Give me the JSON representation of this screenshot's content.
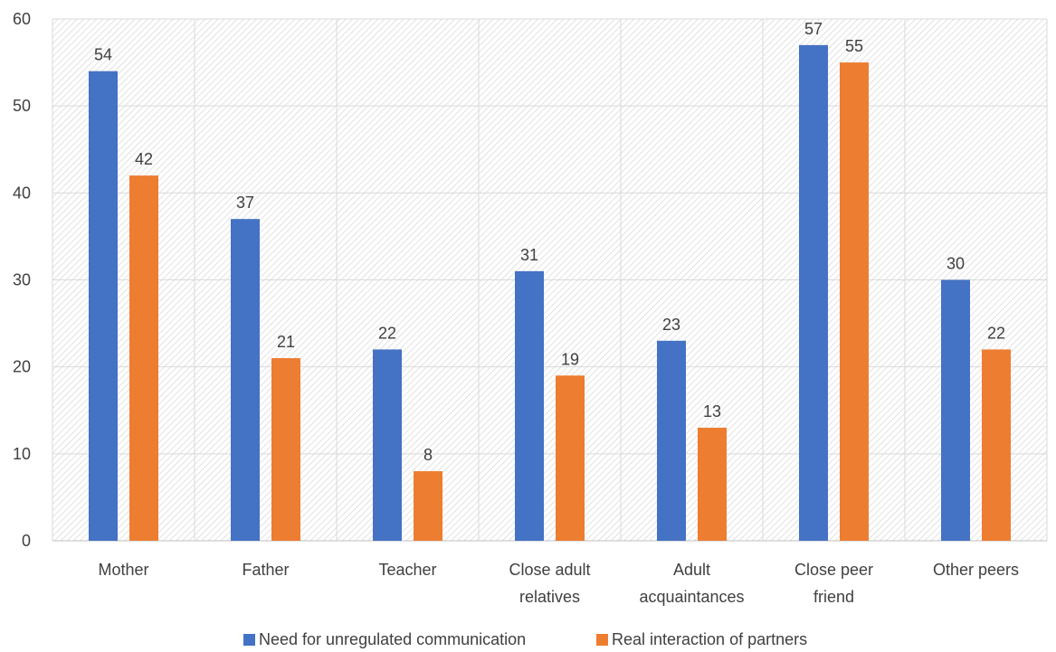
{
  "chart_data": {
    "type": "bar",
    "title": "",
    "xlabel": "",
    "ylabel": "",
    "ylim": [
      0,
      60
    ],
    "y_ticks": [
      "0",
      "10",
      "20",
      "30",
      "40",
      "50",
      "60"
    ],
    "grid": true,
    "legend_position": "bottom",
    "categories": [
      [
        "Mother"
      ],
      [
        "Father"
      ],
      [
        "Teacher"
      ],
      [
        "Close adult",
        "relatives"
      ],
      [
        "Adult",
        "acquaintances"
      ],
      [
        "Close peer",
        "friend"
      ],
      [
        "Other peers"
      ]
    ],
    "series": [
      {
        "name": "Need for unregulated communication",
        "color": "#4472C4",
        "values": [
          54,
          37,
          22,
          31,
          23,
          57,
          30
        ]
      },
      {
        "name": "Real interaction of partners",
        "color": "#ED7D31",
        "values": [
          42,
          21,
          8,
          19,
          13,
          55,
          22
        ]
      }
    ]
  }
}
